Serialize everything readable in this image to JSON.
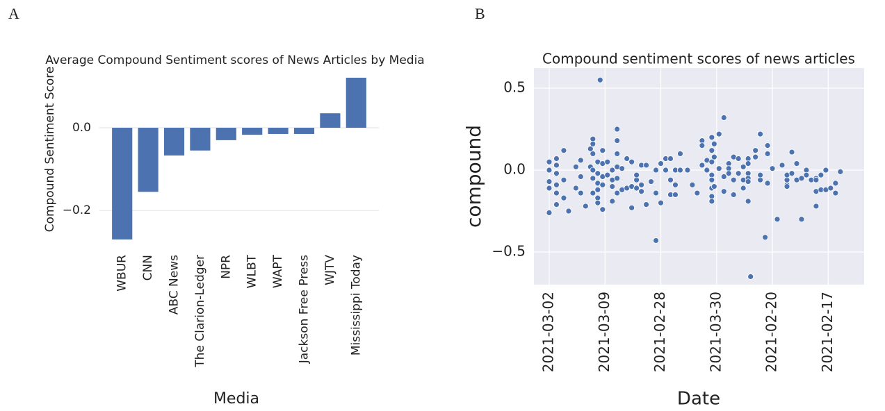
{
  "chart_data": [
    {
      "type": "bar",
      "panel_label": "A",
      "title": "Average Compound Sentiment scores of News Articles by Media",
      "xlabel": "Media",
      "ylabel": "Compound Sentiment Score",
      "categories": [
        "WBUR",
        "CNN",
        "ABC News",
        "The Clarion-Ledger",
        "NPR",
        "WLBT",
        "WAPT",
        "Jackson Free Press",
        "WJTV",
        "Mississippi Today"
      ],
      "values": [
        -0.27,
        -0.155,
        -0.067,
        -0.055,
        -0.03,
        -0.017,
        -0.015,
        -0.015,
        0.035,
        0.121
      ],
      "color": "#4c72b0",
      "background": "#ffffff",
      "grid": true,
      "ylim": [
        -0.287,
        0.183
      ],
      "yticks": [
        {
          "value": -0.2,
          "label": "−0.2"
        },
        {
          "value": 0,
          "label": "0.0"
        }
      ]
    },
    {
      "type": "scatter",
      "panel_label": "B",
      "title": "Compound sentiment scores of news articles",
      "xlabel": "Date",
      "ylabel": "compound",
      "x": [
        0,
        0,
        0,
        0,
        0,
        3,
        3,
        3,
        3,
        3,
        3,
        6,
        6,
        6,
        8,
        11,
        11,
        13,
        13,
        13,
        15,
        17,
        17,
        18,
        18,
        18,
        18,
        18,
        18,
        20,
        20,
        20,
        20,
        20,
        20,
        21,
        22,
        22,
        22,
        22,
        22,
        24,
        24,
        26,
        26,
        26,
        26,
        28,
        28,
        28,
        28,
        28,
        28,
        30,
        30,
        32,
        32,
        34,
        34,
        34,
        36,
        36,
        36,
        38,
        38,
        38,
        40,
        40,
        42,
        44,
        44,
        44,
        46,
        46,
        48,
        48,
        50,
        50,
        50,
        52,
        52,
        52,
        54,
        54,
        57,
        59,
        61,
        63,
        63,
        63,
        65,
        65,
        67,
        67,
        67,
        67,
        67,
        67,
        67,
        67,
        68,
        68,
        68,
        70,
        70,
        72,
        72,
        72,
        74,
        74,
        74,
        76,
        76,
        76,
        78,
        78,
        80,
        80,
        80,
        82,
        82,
        82,
        82,
        82,
        82,
        83,
        85,
        85,
        87,
        87,
        87,
        89,
        90,
        90,
        90,
        92,
        94,
        96,
        98,
        98,
        98,
        98,
        100,
        100,
        102,
        102,
        104,
        104,
        106,
        106,
        108,
        110,
        110,
        110,
        110,
        112,
        112,
        114,
        114,
        116,
        118,
        118,
        120
      ],
      "y": [
        0.05,
        0,
        -0.07,
        -0.11,
        -0.26,
        0.07,
        0.03,
        -0.02,
        -0.09,
        -0.14,
        -0.21,
        0.12,
        -0.06,
        -0.17,
        -0.25,
        0.02,
        -0.11,
        0.06,
        -0.04,
        -0.14,
        -0.22,
        0.13,
        0.02,
        0.19,
        0.16,
        0.1,
        0,
        -0.05,
        -0.14,
        0.05,
        -0.02,
        -0.08,
        -0.12,
        -0.17,
        -0.2,
        0.55,
        0.12,
        0.04,
        -0.04,
        -0.09,
        -0.24,
        -0.03,
        0.05,
        0,
        -0.06,
        -0.1,
        -0.19,
        0.25,
        0.18,
        0.1,
        0.02,
        -0.05,
        -0.14,
        -0.12,
        0.01,
        0.07,
        -0.11,
        -0.1,
        0.05,
        -0.23,
        -0.06,
        -0.11,
        -0.03,
        0.03,
        -0.13,
        -0.09,
        -0.21,
        0.03,
        -0.07,
        -0.43,
        -0.14,
        0,
        0.04,
        -0.2,
        0,
        0.07,
        -0.06,
        0.07,
        -0.15,
        0,
        -0.15,
        -0.09,
        0.1,
        0,
        0,
        -0.09,
        -0.14,
        0.18,
        0.15,
        0.03,
        0,
        0.06,
        0.2,
        0.12,
        0.05,
        -0.03,
        -0.06,
        -0.11,
        -0.16,
        -0.19,
        0.08,
        0.16,
        -0.1,
        0.01,
        0.22,
        -0.13,
        -0.04,
        0.32,
        0.04,
        0.01,
        -0.02,
        0.08,
        -0.15,
        -0.06,
        -0.02,
        0.07,
        0.02,
        -0.06,
        -0.11,
        0.07,
        0.04,
        -0.02,
        -0.05,
        -0.07,
        -0.19,
        -0.65,
        0.12,
        0.08,
        -0.06,
        0.22,
        -0.03,
        -0.41,
        0.15,
        0.1,
        -0.08,
        0.01,
        -0.3,
        0.03,
        -0.09,
        -0.06,
        -0.03,
        -0.1,
        0.11,
        -0.02,
        -0.06,
        0.04,
        -0.3,
        -0.05,
        0,
        -0.03,
        -0.06,
        -0.05,
        -0.06,
        -0.22,
        -0.13,
        -0.12,
        -0.03,
        0,
        -0.12,
        -0.11,
        -0.08,
        -0.14,
        -0.01
      ],
      "color": "#4c72b0",
      "background": "#eaeaf2",
      "grid": true,
      "xlim": [
        -6.3,
        129.8
      ],
      "ylim": [
        -0.699,
        0.623
      ],
      "xticks": [
        {
          "value": 0,
          "label": "2021-03-02"
        },
        {
          "value": 23,
          "label": "2021-03-09"
        },
        {
          "value": 46,
          "label": "2021-02-28"
        },
        {
          "value": 69,
          "label": "2021-03-30"
        },
        {
          "value": 92,
          "label": "2021-02-20"
        },
        {
          "value": 115,
          "label": "2021-02-17"
        }
      ],
      "yticks": [
        {
          "value": -0.5,
          "label": "−0.5"
        },
        {
          "value": 0,
          "label": "0.0"
        },
        {
          "value": 0.5,
          "label": "0.5"
        }
      ]
    }
  ]
}
